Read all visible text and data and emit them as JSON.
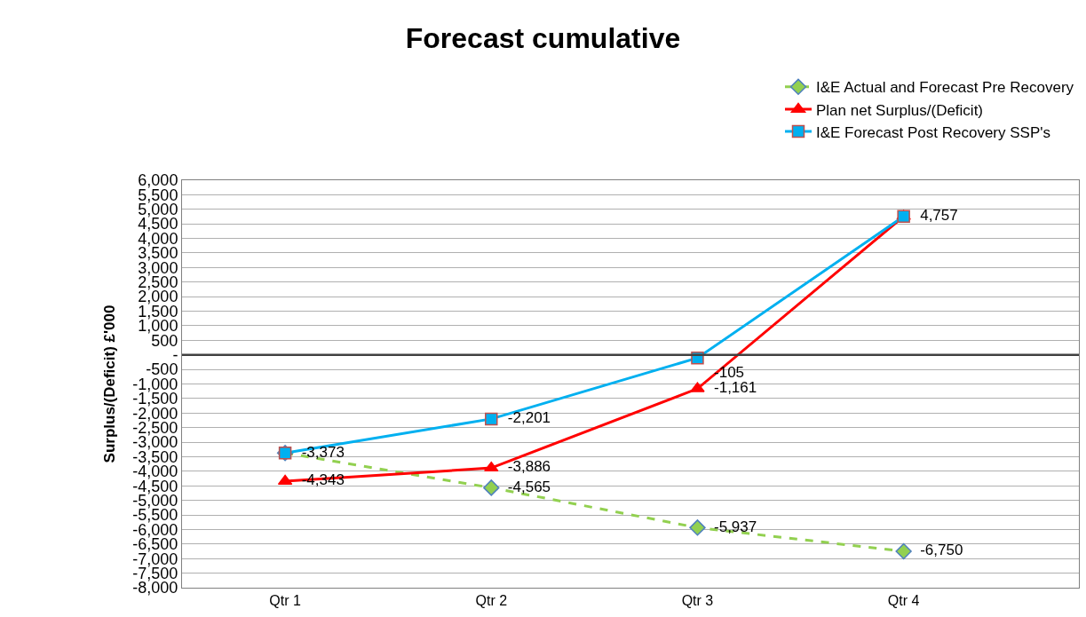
{
  "chart_data": {
    "type": "line",
    "title": "Forecast cumulative",
    "ylabel": "Surplus/(Deficit) £'000",
    "categories": [
      "Qtr 1",
      "Qtr 2",
      "Qtr 3",
      "Qtr 4"
    ],
    "series": [
      {
        "name": "I&E Actual and Forecast Pre Recovery",
        "color": "#92d050",
        "values": [
          -3373,
          -4565,
          -5937,
          -6750
        ],
        "value_labels": [
          null,
          "-4,565",
          "-5,937",
          "-6,750"
        ],
        "marker": "diamond",
        "line_style": "dashed"
      },
      {
        "name": "Plan net Surplus/(Deficit)",
        "color": "#ff0000",
        "values": [
          -4343,
          -3886,
          -1161,
          4757
        ],
        "value_labels": [
          "-4,343",
          "-3,886",
          "-1,161",
          null
        ],
        "marker": "triangle",
        "line_style": "solid"
      },
      {
        "name": "I&E Forecast Post Recovery SSP's",
        "color": "#00b0f0",
        "values": [
          -3373,
          -2201,
          -105,
          4757
        ],
        "value_labels": [
          "-3,373",
          "-2,201",
          "-105",
          "4,757"
        ],
        "marker": "square",
        "line_style": "solid"
      }
    ],
    "ylim": [
      -8000,
      6000
    ],
    "yticks": [
      {
        "value": 6000,
        "label": "6,000"
      },
      {
        "value": 5500,
        "label": "5,500"
      },
      {
        "value": 5000,
        "label": "5,000"
      },
      {
        "value": 4500,
        "label": "4,500"
      },
      {
        "value": 4000,
        "label": "4,000"
      },
      {
        "value": 3500,
        "label": "3,500"
      },
      {
        "value": 3000,
        "label": "3,000"
      },
      {
        "value": 2500,
        "label": "2,500"
      },
      {
        "value": 2000,
        "label": "2,000"
      },
      {
        "value": 1500,
        "label": "1,500"
      },
      {
        "value": 1000,
        "label": "1,000"
      },
      500,
      {
        "value": 0,
        "label": "-"
      },
      -500,
      {
        "value": -1000,
        "label": "-1,000"
      },
      {
        "value": -1500,
        "label": "-1,500"
      },
      {
        "value": -2000,
        "label": "-2,000"
      },
      {
        "value": -2500,
        "label": "-2,500"
      },
      {
        "value": -3000,
        "label": "-3,000"
      },
      {
        "value": -3500,
        "label": "-3,500"
      },
      {
        "value": -4000,
        "label": "-4,000"
      },
      {
        "value": -4500,
        "label": "-4,500"
      },
      {
        "value": -5000,
        "label": "-5,000"
      },
      {
        "value": -5500,
        "label": "-5,500"
      },
      {
        "value": -6000,
        "label": "-6,000"
      },
      {
        "value": -6500,
        "label": "-6,500"
      },
      {
        "value": -7000,
        "label": "-7,000"
      },
      {
        "value": -7500,
        "label": "-7,500"
      },
      {
        "value": -8000,
        "label": "-8,000"
      }
    ],
    "ref_lines": [
      {
        "axis": "y",
        "value": 0,
        "color": "#404040"
      }
    ],
    "grid": "y",
    "legend": "top right"
  }
}
